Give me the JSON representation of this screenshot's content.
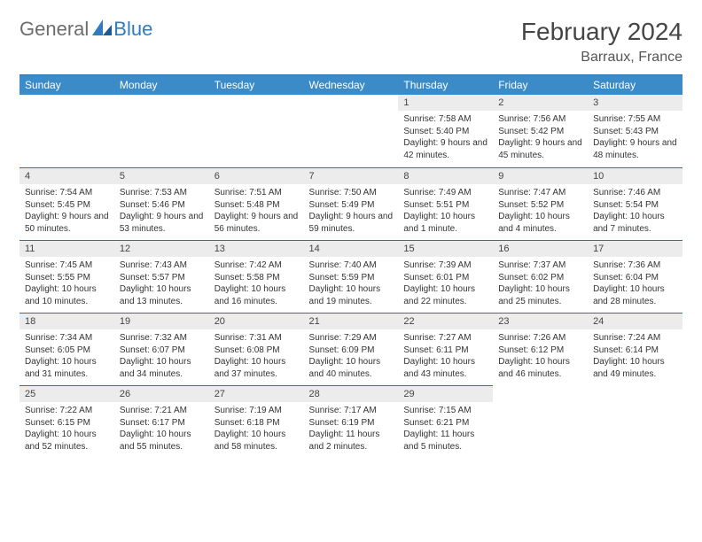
{
  "brand": {
    "part1": "General",
    "part2": "Blue"
  },
  "title": "February 2024",
  "location": "Barraux, France",
  "colors": {
    "header_bg": "#3b8bc9",
    "header_text": "#ffffff",
    "daynum_bg": "#ececec",
    "rule": "#2f6fa8",
    "body_text": "#333333",
    "title_text": "#454545",
    "logo_gray": "#6d6d6d",
    "logo_blue": "#2f7bbf"
  },
  "day_headers": [
    "Sunday",
    "Monday",
    "Tuesday",
    "Wednesday",
    "Thursday",
    "Friday",
    "Saturday"
  ],
  "weeks": [
    [
      {
        "n": "",
        "sr": "",
        "ss": "",
        "dl": ""
      },
      {
        "n": "",
        "sr": "",
        "ss": "",
        "dl": ""
      },
      {
        "n": "",
        "sr": "",
        "ss": "",
        "dl": ""
      },
      {
        "n": "",
        "sr": "",
        "ss": "",
        "dl": ""
      },
      {
        "n": "1",
        "sr": "Sunrise: 7:58 AM",
        "ss": "Sunset: 5:40 PM",
        "dl": "Daylight: 9 hours and 42 minutes."
      },
      {
        "n": "2",
        "sr": "Sunrise: 7:56 AM",
        "ss": "Sunset: 5:42 PM",
        "dl": "Daylight: 9 hours and 45 minutes."
      },
      {
        "n": "3",
        "sr": "Sunrise: 7:55 AM",
        "ss": "Sunset: 5:43 PM",
        "dl": "Daylight: 9 hours and 48 minutes."
      }
    ],
    [
      {
        "n": "4",
        "sr": "Sunrise: 7:54 AM",
        "ss": "Sunset: 5:45 PM",
        "dl": "Daylight: 9 hours and 50 minutes."
      },
      {
        "n": "5",
        "sr": "Sunrise: 7:53 AM",
        "ss": "Sunset: 5:46 PM",
        "dl": "Daylight: 9 hours and 53 minutes."
      },
      {
        "n": "6",
        "sr": "Sunrise: 7:51 AM",
        "ss": "Sunset: 5:48 PM",
        "dl": "Daylight: 9 hours and 56 minutes."
      },
      {
        "n": "7",
        "sr": "Sunrise: 7:50 AM",
        "ss": "Sunset: 5:49 PM",
        "dl": "Daylight: 9 hours and 59 minutes."
      },
      {
        "n": "8",
        "sr": "Sunrise: 7:49 AM",
        "ss": "Sunset: 5:51 PM",
        "dl": "Daylight: 10 hours and 1 minute."
      },
      {
        "n": "9",
        "sr": "Sunrise: 7:47 AM",
        "ss": "Sunset: 5:52 PM",
        "dl": "Daylight: 10 hours and 4 minutes."
      },
      {
        "n": "10",
        "sr": "Sunrise: 7:46 AM",
        "ss": "Sunset: 5:54 PM",
        "dl": "Daylight: 10 hours and 7 minutes."
      }
    ],
    [
      {
        "n": "11",
        "sr": "Sunrise: 7:45 AM",
        "ss": "Sunset: 5:55 PM",
        "dl": "Daylight: 10 hours and 10 minutes."
      },
      {
        "n": "12",
        "sr": "Sunrise: 7:43 AM",
        "ss": "Sunset: 5:57 PM",
        "dl": "Daylight: 10 hours and 13 minutes."
      },
      {
        "n": "13",
        "sr": "Sunrise: 7:42 AM",
        "ss": "Sunset: 5:58 PM",
        "dl": "Daylight: 10 hours and 16 minutes."
      },
      {
        "n": "14",
        "sr": "Sunrise: 7:40 AM",
        "ss": "Sunset: 5:59 PM",
        "dl": "Daylight: 10 hours and 19 minutes."
      },
      {
        "n": "15",
        "sr": "Sunrise: 7:39 AM",
        "ss": "Sunset: 6:01 PM",
        "dl": "Daylight: 10 hours and 22 minutes."
      },
      {
        "n": "16",
        "sr": "Sunrise: 7:37 AM",
        "ss": "Sunset: 6:02 PM",
        "dl": "Daylight: 10 hours and 25 minutes."
      },
      {
        "n": "17",
        "sr": "Sunrise: 7:36 AM",
        "ss": "Sunset: 6:04 PM",
        "dl": "Daylight: 10 hours and 28 minutes."
      }
    ],
    [
      {
        "n": "18",
        "sr": "Sunrise: 7:34 AM",
        "ss": "Sunset: 6:05 PM",
        "dl": "Daylight: 10 hours and 31 minutes."
      },
      {
        "n": "19",
        "sr": "Sunrise: 7:32 AM",
        "ss": "Sunset: 6:07 PM",
        "dl": "Daylight: 10 hours and 34 minutes."
      },
      {
        "n": "20",
        "sr": "Sunrise: 7:31 AM",
        "ss": "Sunset: 6:08 PM",
        "dl": "Daylight: 10 hours and 37 minutes."
      },
      {
        "n": "21",
        "sr": "Sunrise: 7:29 AM",
        "ss": "Sunset: 6:09 PM",
        "dl": "Daylight: 10 hours and 40 minutes."
      },
      {
        "n": "22",
        "sr": "Sunrise: 7:27 AM",
        "ss": "Sunset: 6:11 PM",
        "dl": "Daylight: 10 hours and 43 minutes."
      },
      {
        "n": "23",
        "sr": "Sunrise: 7:26 AM",
        "ss": "Sunset: 6:12 PM",
        "dl": "Daylight: 10 hours and 46 minutes."
      },
      {
        "n": "24",
        "sr": "Sunrise: 7:24 AM",
        "ss": "Sunset: 6:14 PM",
        "dl": "Daylight: 10 hours and 49 minutes."
      }
    ],
    [
      {
        "n": "25",
        "sr": "Sunrise: 7:22 AM",
        "ss": "Sunset: 6:15 PM",
        "dl": "Daylight: 10 hours and 52 minutes."
      },
      {
        "n": "26",
        "sr": "Sunrise: 7:21 AM",
        "ss": "Sunset: 6:17 PM",
        "dl": "Daylight: 10 hours and 55 minutes."
      },
      {
        "n": "27",
        "sr": "Sunrise: 7:19 AM",
        "ss": "Sunset: 6:18 PM",
        "dl": "Daylight: 10 hours and 58 minutes."
      },
      {
        "n": "28",
        "sr": "Sunrise: 7:17 AM",
        "ss": "Sunset: 6:19 PM",
        "dl": "Daylight: 11 hours and 2 minutes."
      },
      {
        "n": "29",
        "sr": "Sunrise: 7:15 AM",
        "ss": "Sunset: 6:21 PM",
        "dl": "Daylight: 11 hours and 5 minutes."
      },
      {
        "n": "",
        "sr": "",
        "ss": "",
        "dl": ""
      },
      {
        "n": "",
        "sr": "",
        "ss": "",
        "dl": ""
      }
    ]
  ]
}
